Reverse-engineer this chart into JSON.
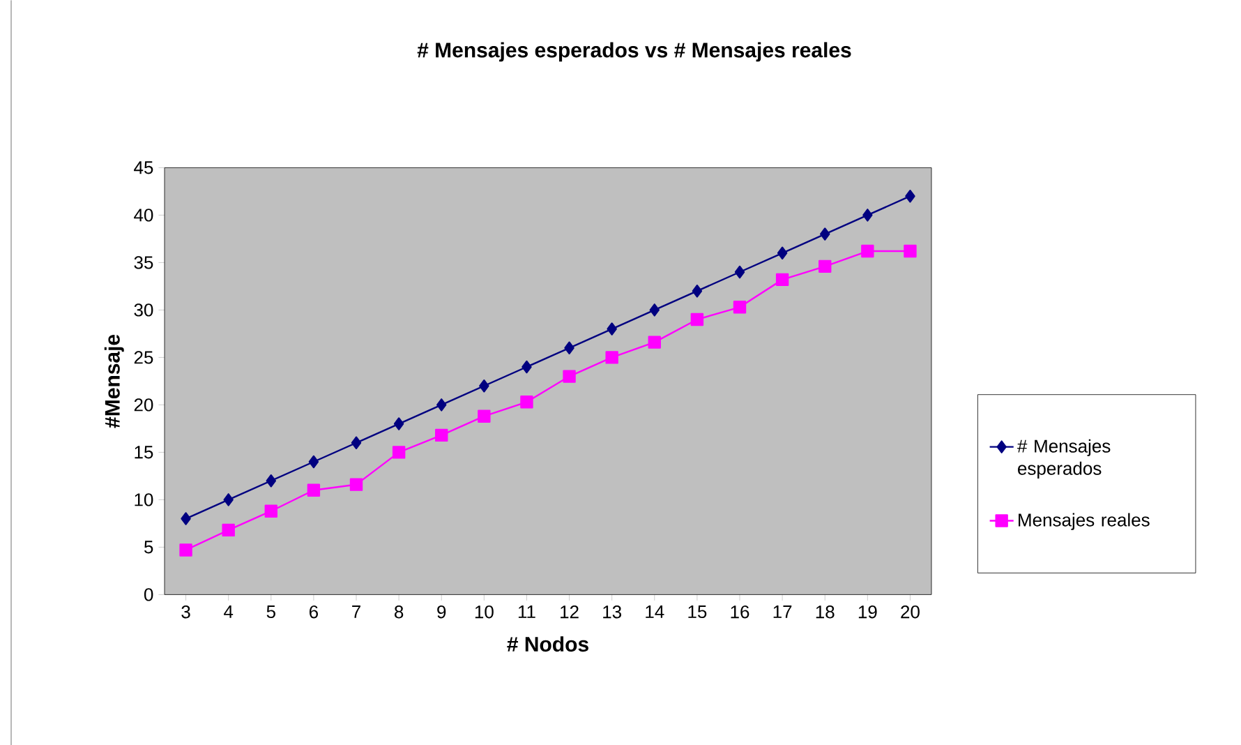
{
  "chart_data": {
    "type": "line",
    "title": "# Mensajes esperados vs # Mensajes reales",
    "xlabel": "# Nodos",
    "ylabel": "#Mensaje",
    "categories": [
      "3",
      "4",
      "5",
      "6",
      "7",
      "8",
      "9",
      "10",
      "11",
      "12",
      "13",
      "14",
      "15",
      "16",
      "17",
      "18",
      "19",
      "20"
    ],
    "series": [
      {
        "name": "# Mensajes esperados",
        "color": "#000080",
        "marker": "diamond",
        "values": [
          8,
          10,
          12,
          14,
          16,
          18,
          20,
          22,
          24,
          26,
          28,
          30,
          32,
          34,
          36,
          38,
          40,
          42
        ]
      },
      {
        "name": "Mensajes reales",
        "color": "#ff00ff",
        "marker": "square",
        "values": [
          4.7,
          6.8,
          8.8,
          11,
          11.6,
          15,
          16.8,
          18.8,
          20.3,
          23,
          25,
          26.6,
          29,
          30.3,
          33.2,
          34.6,
          36.2,
          36.2
        ]
      }
    ],
    "ylim": [
      0,
      45
    ],
    "yticks": [
      0,
      5,
      10,
      15,
      20,
      25,
      30,
      35,
      40,
      45
    ],
    "grid": false,
    "legend": "right",
    "line_style": "solid"
  }
}
